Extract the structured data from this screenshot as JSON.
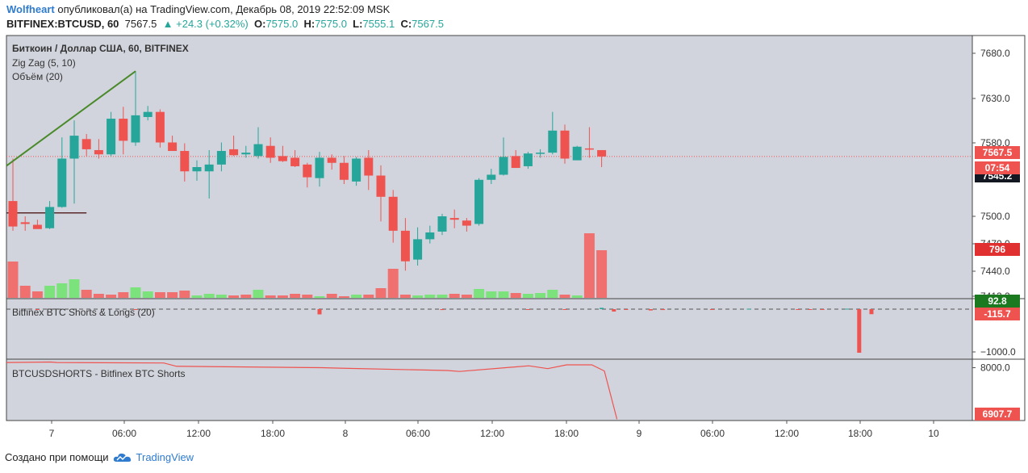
{
  "header": {
    "author": "Wolfheart",
    "published_text": "опубликовал(а) на TradingView.com, Декабрь 08, 2019 22:52:09 MSK",
    "symbol": "BITFINEX:BTCUSD, 60",
    "last": "7567.5",
    "change": "▲ +24.3 (+0.32%)",
    "o_label": "O:",
    "o_value": "7575.0",
    "h_label": "H:",
    "h_value": "7575.0",
    "l_label": "L:",
    "l_value": "7555.1",
    "c_label": "C:",
    "c_value": "7567.5"
  },
  "legends": {
    "main_title": "Биткоин / Доллар США, 60, BITFINEX",
    "zigzag": "Zig Zag (5, 10)",
    "volume": "Объём (20)",
    "shorts_longs": "Bitfinex BTC Shorts & Longs (20)",
    "shorts": "BTCUSDSHORTS - Bitfinex BTC Shorts"
  },
  "footer": {
    "made_with": "Создано при помощи",
    "brand": "TradingView"
  },
  "colors": {
    "bg": "#d1d4dc",
    "up": "#26a69a",
    "down": "#ef5350",
    "vol_up": "#7ce27c",
    "vol_down": "#f07070",
    "zigzag": "#4a8a2a",
    "shorts_line": "#ef5350"
  },
  "chart_data": [
    {
      "type": "candlestick",
      "title": "Биткоин / Доллар США, 60, BITFINEX",
      "ylim": [
        7400,
        7710
      ],
      "y_ticks": [
        "7680.0",
        "7630.0",
        "7580.0",
        "7500.0",
        "7470.0",
        "7440.0",
        "7413.2"
      ],
      "x_ticks": [
        "7",
        "06:00",
        "12:00",
        "18:00",
        "8",
        "06:00",
        "12:00",
        "18:00",
        "9",
        "06:00",
        "12:00",
        "18:00",
        "10"
      ],
      "last_price_label": "7567.5",
      "countdown_label": "07:54",
      "hidden_label": "7545.2",
      "volume_label": "796",
      "candles": [
        {
          "o": 7515,
          "h": 7565,
          "l": 7480,
          "c": 7485
        },
        {
          "o": 7490,
          "h": 7497,
          "l": 7480,
          "c": 7488
        },
        {
          "o": 7487,
          "h": 7493,
          "l": 7485,
          "c": 7482
        },
        {
          "o": 7483,
          "h": 7515,
          "l": 7482,
          "c": 7508
        },
        {
          "o": 7508,
          "h": 7590,
          "l": 7507,
          "c": 7565
        },
        {
          "o": 7565,
          "h": 7610,
          "l": 7512,
          "c": 7592
        },
        {
          "o": 7588,
          "h": 7594,
          "l": 7568,
          "c": 7576
        },
        {
          "o": 7575,
          "h": 7588,
          "l": 7565,
          "c": 7570
        },
        {
          "o": 7570,
          "h": 7620,
          "l": 7568,
          "c": 7612
        },
        {
          "o": 7612,
          "h": 7626,
          "l": 7570,
          "c": 7586
        },
        {
          "o": 7584,
          "h": 7668,
          "l": 7580,
          "c": 7616
        },
        {
          "o": 7614,
          "h": 7627,
          "l": 7610,
          "c": 7620
        },
        {
          "o": 7620,
          "h": 7623,
          "l": 7578,
          "c": 7584
        },
        {
          "o": 7584,
          "h": 7592,
          "l": 7576,
          "c": 7574
        },
        {
          "o": 7574,
          "h": 7583,
          "l": 7538,
          "c": 7550
        },
        {
          "o": 7550,
          "h": 7563,
          "l": 7539,
          "c": 7555
        },
        {
          "o": 7550,
          "h": 7575,
          "l": 7518,
          "c": 7558
        },
        {
          "o": 7558,
          "h": 7584,
          "l": 7550,
          "c": 7574
        },
        {
          "o": 7576,
          "h": 7592,
          "l": 7568,
          "c": 7569
        },
        {
          "o": 7570,
          "h": 7580,
          "l": 7566,
          "c": 7572
        },
        {
          "o": 7568,
          "h": 7602,
          "l": 7565,
          "c": 7582
        },
        {
          "o": 7580,
          "h": 7590,
          "l": 7560,
          "c": 7566
        },
        {
          "o": 7568,
          "h": 7580,
          "l": 7561,
          "c": 7562
        },
        {
          "o": 7566,
          "h": 7575,
          "l": 7555,
          "c": 7556
        },
        {
          "o": 7558,
          "h": 7560,
          "l": 7531,
          "c": 7543
        },
        {
          "o": 7542,
          "h": 7573,
          "l": 7532,
          "c": 7566
        },
        {
          "o": 7566,
          "h": 7570,
          "l": 7552,
          "c": 7560
        },
        {
          "o": 7560,
          "h": 7568,
          "l": 7535,
          "c": 7540
        },
        {
          "o": 7538,
          "h": 7567,
          "l": 7533,
          "c": 7565
        },
        {
          "o": 7566,
          "h": 7575,
          "l": 7528,
          "c": 7545
        },
        {
          "o": 7545,
          "h": 7557,
          "l": 7491,
          "c": 7520
        },
        {
          "o": 7520,
          "h": 7528,
          "l": 7466,
          "c": 7480
        },
        {
          "o": 7480,
          "h": 7495,
          "l": 7433,
          "c": 7444
        },
        {
          "o": 7446,
          "h": 7484,
          "l": 7439,
          "c": 7470
        },
        {
          "o": 7470,
          "h": 7486,
          "l": 7465,
          "c": 7478
        },
        {
          "o": 7479,
          "h": 7500,
          "l": 7475,
          "c": 7497
        },
        {
          "o": 7495,
          "h": 7505,
          "l": 7483,
          "c": 7493
        },
        {
          "o": 7492,
          "h": 7495,
          "l": 7479,
          "c": 7486
        },
        {
          "o": 7488,
          "h": 7542,
          "l": 7486,
          "c": 7540
        },
        {
          "o": 7540,
          "h": 7553,
          "l": 7535,
          "c": 7546
        },
        {
          "o": 7546,
          "h": 7590,
          "l": 7545,
          "c": 7567
        },
        {
          "o": 7568,
          "h": 7575,
          "l": 7555,
          "c": 7554
        },
        {
          "o": 7556,
          "h": 7573,
          "l": 7553,
          "c": 7571
        },
        {
          "o": 7571,
          "h": 7576,
          "l": 7566,
          "c": 7572
        },
        {
          "o": 7572,
          "h": 7620,
          "l": 7570,
          "c": 7598
        },
        {
          "o": 7598,
          "h": 7605,
          "l": 7559,
          "c": 7565
        },
        {
          "o": 7563,
          "h": 7580,
          "l": 7563,
          "c": 7579
        },
        {
          "o": 7577,
          "h": 7602,
          "l": 7566,
          "c": 7576
        },
        {
          "o": 7575,
          "h": 7575,
          "l": 7555,
          "c": 7567.5
        }
      ],
      "zigzag": [
        [
          0,
          7566
        ],
        [
          10,
          7668
        ]
      ],
      "price_line": 7567.5,
      "short_line": {
        "from": 0,
        "to": 6,
        "y": 7501
      }
    },
    {
      "type": "bar",
      "title": "Объём (20)",
      "values": [
        45,
        15,
        8,
        15,
        18,
        23,
        10,
        5,
        4,
        7,
        13,
        8,
        7,
        7,
        9,
        3,
        5,
        4,
        3,
        4,
        10,
        3,
        3,
        5,
        4,
        2,
        5,
        2,
        4,
        4,
        12,
        36,
        4,
        3,
        4,
        4,
        5,
        4,
        11,
        8,
        8,
        6,
        5,
        6,
        10,
        4,
        3,
        80,
        59
      ],
      "directions": [
        "d",
        "d",
        "d",
        "u",
        "u",
        "u",
        "d",
        "d",
        "d",
        "d",
        "u",
        "u",
        "d",
        "d",
        "d",
        "u",
        "u",
        "u",
        "d",
        "d",
        "u",
        "d",
        "d",
        "d",
        "d",
        "u",
        "d",
        "d",
        "u",
        "d",
        "d",
        "d",
        "d",
        "u",
        "u",
        "u",
        "d",
        "d",
        "u",
        "u",
        "u",
        "d",
        "u",
        "u",
        "u",
        "d",
        "u",
        "d",
        "d"
      ]
    },
    {
      "type": "bar",
      "title": "Bitfinex BTC Shorts & Longs (20)",
      "y_ticks": [
        "−1000.0"
      ],
      "badge_top": "92.8",
      "badge_value": "-115.7",
      "bars": [
        [
          2,
          -10
        ],
        [
          10,
          -15
        ],
        [
          25,
          -120
        ],
        [
          35,
          -20
        ],
        [
          42,
          -5
        ],
        [
          45,
          -15
        ],
        [
          48,
          30
        ],
        [
          49,
          -55
        ],
        [
          50,
          -8
        ],
        [
          52,
          -30
        ],
        [
          53,
          -20
        ],
        [
          57,
          -15
        ],
        [
          60,
          10
        ],
        [
          64,
          -13
        ],
        [
          65,
          -8
        ],
        [
          66,
          -8
        ],
        [
          68,
          10
        ],
        [
          69,
          -1000
        ],
        [
          70,
          -115.7
        ]
      ]
    },
    {
      "type": "line",
      "title": "BTCUSDSHORTS - Bitfinex BTC Shorts",
      "y_ticks": [
        "8000.0"
      ],
      "last_label": "6907.7",
      "ylim": [
        6880,
        8180
      ],
      "points": [
        [
          0,
          8110
        ],
        [
          7,
          8120
        ],
        [
          8,
          8110
        ],
        [
          25,
          8100
        ],
        [
          27,
          8030
        ],
        [
          50,
          8000
        ],
        [
          53,
          7990
        ],
        [
          70,
          7940
        ],
        [
          72,
          7920
        ],
        [
          83,
          8040
        ],
        [
          86,
          7980
        ],
        [
          89,
          8060
        ],
        [
          93,
          8060
        ],
        [
          95,
          7930
        ],
        [
          97,
          6907.7
        ]
      ]
    }
  ]
}
